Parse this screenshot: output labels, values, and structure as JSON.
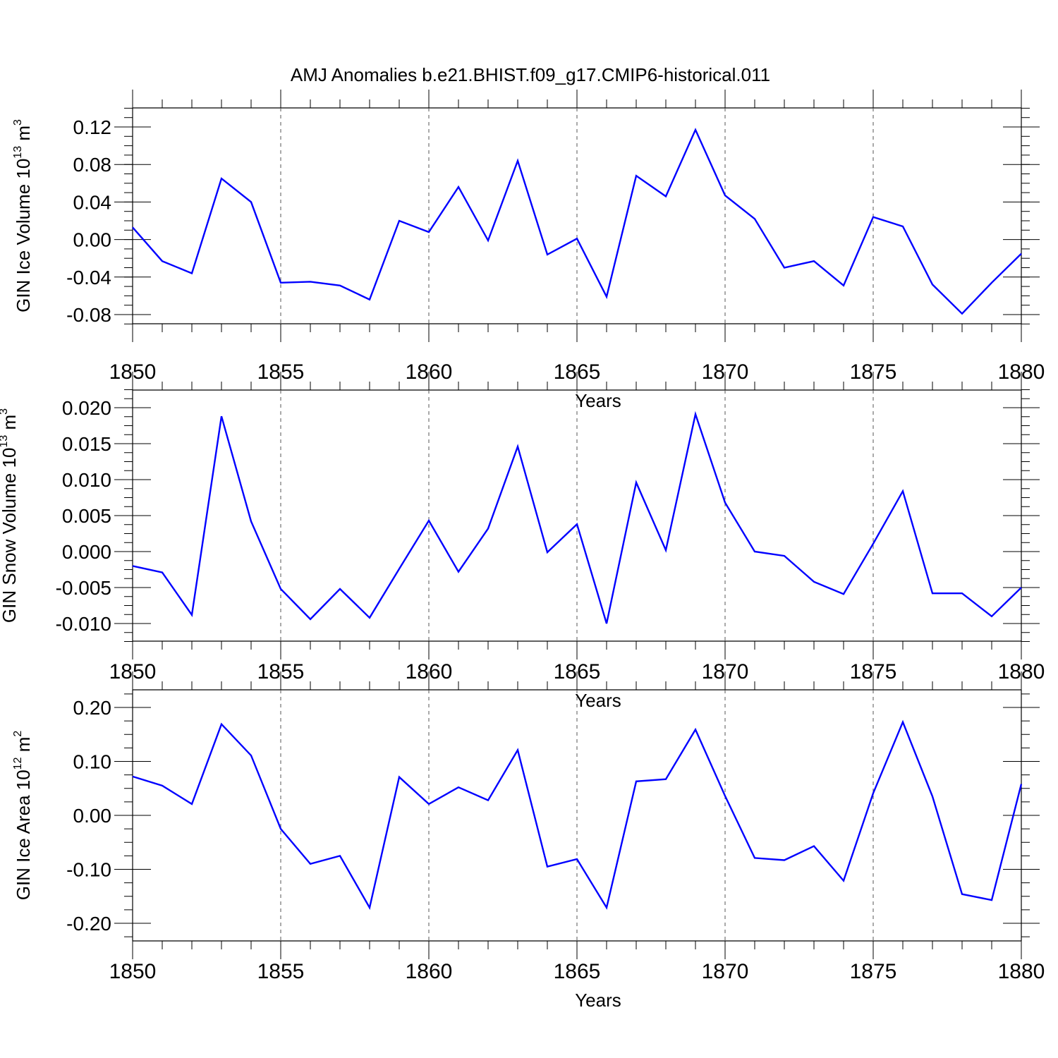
{
  "title": "AMJ Anomalies b.e21.BHIST.f09_g17.CMIP6-historical.011",
  "colors": {
    "series": "#0000ff",
    "axis": "#000000",
    "grid": "#555555"
  },
  "chart_data": [
    {
      "type": "line",
      "xlabel": "Years",
      "ylabel": {
        "main": "GIN Ice Volume 10",
        "exp": "13",
        "unit": " m",
        "unit_exp": "3"
      },
      "xlim": [
        1850,
        1880
      ],
      "ylim": [
        -0.09,
        0.12
      ],
      "x_ticks": [
        1850,
        1855,
        1860,
        1865,
        1870,
        1875,
        1880
      ],
      "y_ticks": [
        -0.08,
        -0.04,
        0.0,
        0.04,
        0.08,
        0.12
      ],
      "y_tick_labels": [
        "-0.08",
        "-0.04",
        "0.00",
        "0.04",
        "0.08",
        "0.12"
      ],
      "grid": "vertical dashed at major x ticks",
      "x": [
        1850,
        1851,
        1852,
        1853,
        1854,
        1855,
        1856,
        1857,
        1858,
        1859,
        1860,
        1861,
        1862,
        1863,
        1864,
        1865,
        1866,
        1867,
        1868,
        1869,
        1870,
        1871,
        1872,
        1873,
        1874,
        1875,
        1876,
        1877,
        1878,
        1879,
        1880
      ],
      "values": [
        0.013,
        -0.023,
        -0.036,
        0.065,
        0.04,
        -0.046,
        -0.045,
        -0.049,
        -0.064,
        0.02,
        0.008,
        0.056,
        -0.001,
        0.084,
        -0.016,
        0.001,
        -0.061,
        0.068,
        0.046,
        0.117,
        0.047,
        0.022,
        -0.03,
        -0.023,
        -0.049,
        0.024,
        0.014,
        -0.048,
        -0.079,
        -0.046,
        -0.015
      ]
    },
    {
      "type": "line",
      "xlabel": "Years",
      "ylabel": {
        "main": "GIN Snow Volume 10",
        "exp": "13",
        "unit": " m",
        "unit_exp": "3"
      },
      "xlim": [
        1850,
        1880
      ],
      "ylim": [
        -0.01,
        0.02
      ],
      "x_ticks": [
        1850,
        1855,
        1860,
        1865,
        1870,
        1875,
        1880
      ],
      "y_ticks": [
        -0.01,
        -0.005,
        0.0,
        0.005,
        0.01,
        0.015,
        0.02
      ],
      "y_tick_labels": [
        "-0.010",
        "-0.005",
        "0.000",
        "0.005",
        "0.010",
        "0.015",
        "0.020"
      ],
      "grid": "vertical dashed at major x ticks",
      "x": [
        1850,
        1851,
        1852,
        1853,
        1854,
        1855,
        1856,
        1857,
        1858,
        1859,
        1860,
        1861,
        1862,
        1863,
        1864,
        1865,
        1866,
        1867,
        1868,
        1869,
        1870,
        1871,
        1872,
        1873,
        1874,
        1875,
        1876,
        1877,
        1878,
        1879,
        1880
      ],
      "values": [
        -0.002,
        -0.0029,
        -0.0088,
        0.0188,
        0.0042,
        -0.0052,
        -0.0094,
        -0.0052,
        -0.0092,
        -0.0024,
        0.0043,
        -0.0028,
        0.0032,
        0.0146,
        -0.0001,
        0.0038,
        -0.01,
        0.0096,
        0.0002,
        0.0191,
        0.0068,
        0.0,
        -0.0006,
        -0.0042,
        -0.0059,
        0.0011,
        0.0084,
        -0.0058,
        -0.0058,
        -0.009,
        -0.005
      ]
    },
    {
      "type": "line",
      "xlabel": "Years",
      "ylabel": {
        "main": "GIN Ice Area 10",
        "exp": "12",
        "unit": " m",
        "unit_exp": "2"
      },
      "xlim": [
        1850,
        1880
      ],
      "ylim": [
        -0.2,
        0.2
      ],
      "x_ticks": [
        1850,
        1855,
        1860,
        1865,
        1870,
        1875,
        1880
      ],
      "y_ticks": [
        -0.2,
        -0.1,
        0.0,
        0.1,
        0.2
      ],
      "y_tick_labels": [
        "-0.20",
        "-0.10",
        "0.00",
        "0.10",
        "0.20"
      ],
      "grid": "vertical dashed at major x ticks",
      "x": [
        1850,
        1851,
        1852,
        1853,
        1854,
        1855,
        1856,
        1857,
        1858,
        1859,
        1860,
        1861,
        1862,
        1863,
        1864,
        1865,
        1866,
        1867,
        1868,
        1869,
        1870,
        1871,
        1872,
        1873,
        1874,
        1875,
        1876,
        1877,
        1878,
        1879,
        1880
      ],
      "values": [
        0.072,
        0.055,
        0.021,
        0.169,
        0.111,
        -0.025,
        -0.09,
        -0.075,
        -0.171,
        0.071,
        0.021,
        0.052,
        0.028,
        0.121,
        -0.095,
        -0.081,
        -0.171,
        0.063,
        0.067,
        0.159,
        0.036,
        -0.079,
        -0.083,
        -0.057,
        -0.121,
        0.041,
        0.173,
        0.035,
        -0.146,
        -0.157,
        0.058
      ]
    }
  ]
}
